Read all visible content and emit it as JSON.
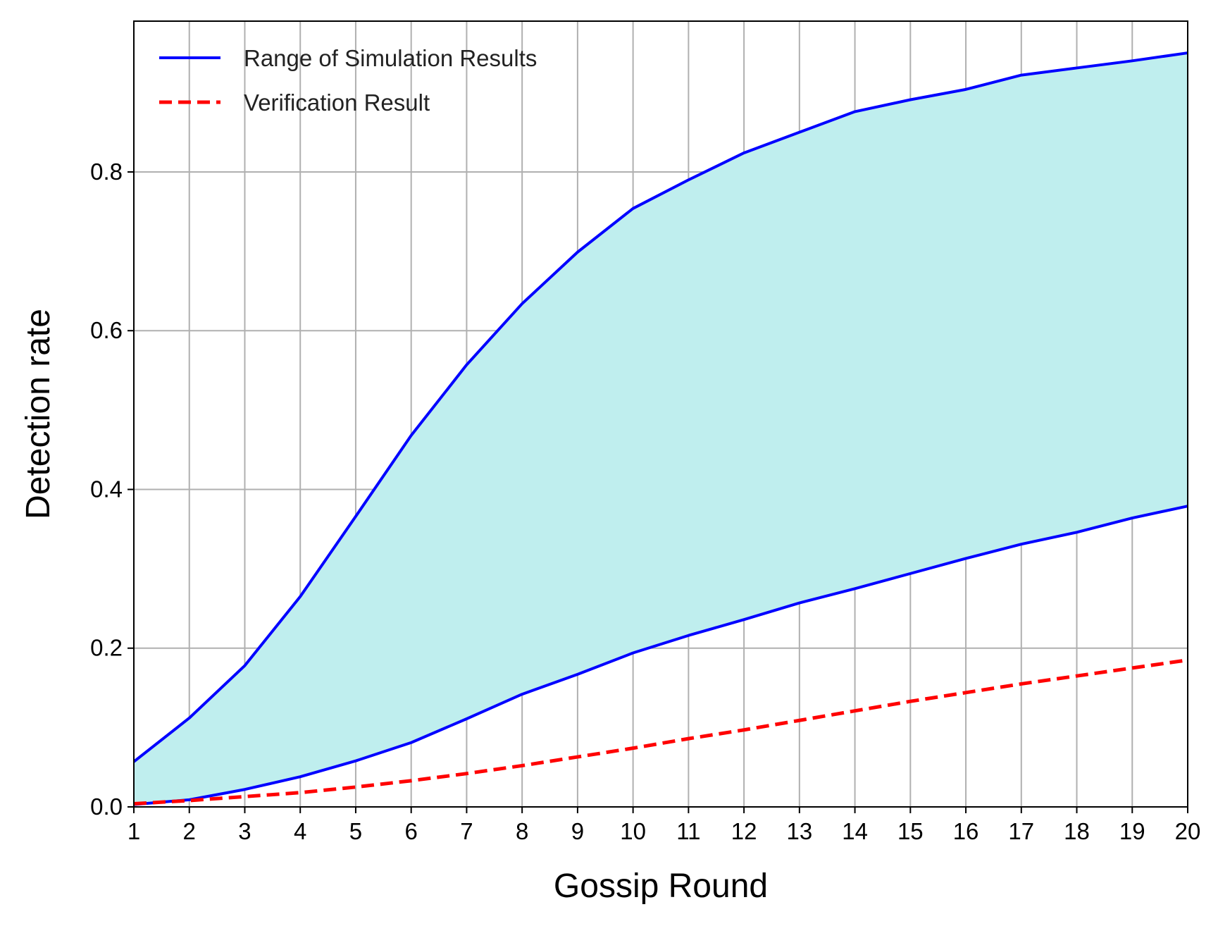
{
  "chart_data": {
    "type": "line",
    "title": "",
    "xlabel": "Gossip Round",
    "ylabel": "Detection rate",
    "x": [
      1,
      2,
      3,
      4,
      5,
      6,
      7,
      8,
      9,
      10,
      11,
      12,
      13,
      14,
      15,
      16,
      17,
      18,
      19,
      20
    ],
    "xlim": [
      1,
      20
    ],
    "ylim": [
      0,
      0.99
    ],
    "xticks": [
      "1",
      "2",
      "3",
      "4",
      "5",
      "6",
      "7",
      "8",
      "9",
      "10",
      "11",
      "12",
      "13",
      "14",
      "15",
      "16",
      "17",
      "18",
      "19",
      "20"
    ],
    "yticks": [
      "0.0",
      "0.2",
      "0.4",
      "0.6",
      "0.8"
    ],
    "ytick_values": [
      0.0,
      0.2,
      0.4,
      0.6,
      0.8
    ],
    "grid": true,
    "legend_position": "top-left",
    "series": [
      {
        "name": "Range of Simulation Results",
        "style": "solid",
        "color": "#0000ff",
        "fill_color": "#bfeeee",
        "upper": [
          0.057,
          0.112,
          0.178,
          0.265,
          0.366,
          0.468,
          0.557,
          0.634,
          0.699,
          0.754,
          0.79,
          0.824,
          0.85,
          0.876,
          0.891,
          0.904,
          0.922,
          0.931,
          0.94,
          0.95
        ],
        "lower": [
          0.003,
          0.009,
          0.022,
          0.038,
          0.058,
          0.081,
          0.111,
          0.142,
          0.167,
          0.194,
          0.216,
          0.236,
          0.257,
          0.275,
          0.294,
          0.313,
          0.331,
          0.346,
          0.364,
          0.379
        ]
      },
      {
        "name": "Verification Result",
        "style": "dashed",
        "color": "#ff0000",
        "values": [
          0.004,
          0.008,
          0.013,
          0.018,
          0.025,
          0.033,
          0.042,
          0.052,
          0.063,
          0.074,
          0.086,
          0.097,
          0.109,
          0.121,
          0.133,
          0.144,
          0.155,
          0.165,
          0.175,
          0.185
        ]
      }
    ]
  }
}
